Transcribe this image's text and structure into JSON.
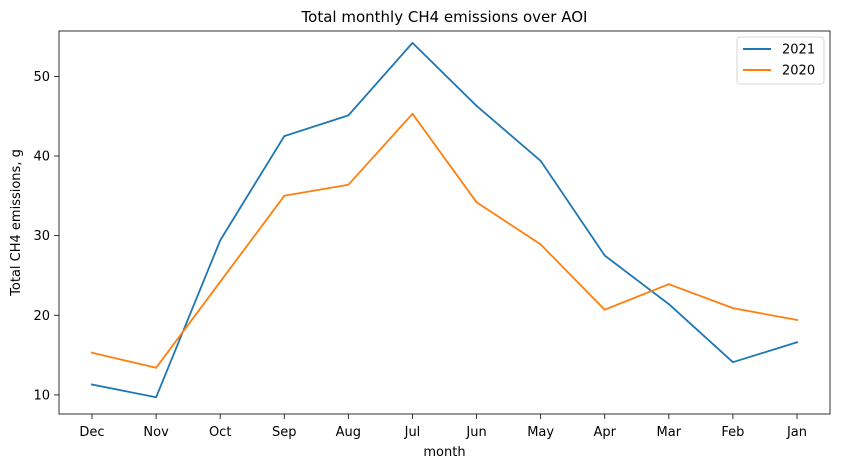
{
  "chart_data": {
    "type": "line",
    "title": "Total monthly CH4 emissions over AOI",
    "xlabel": "month",
    "ylabel": "Total CH4 emissions, g",
    "categories": [
      "Dec",
      "Nov",
      "Oct",
      "Sep",
      "Aug",
      "Jul",
      "Jun",
      "May",
      "Apr",
      "Mar",
      "Feb",
      "Jan"
    ],
    "ylim": [
      7.6,
      55.7
    ],
    "yticks": [
      10,
      20,
      30,
      40,
      50
    ],
    "grid": false,
    "legend_position": "top-right",
    "series": [
      {
        "name": "2021",
        "color": "#1f77b4",
        "values": [
          11.3,
          9.7,
          29.4,
          42.5,
          45.1,
          54.2,
          46.3,
          39.4,
          27.5,
          21.4,
          14.1,
          16.6
        ]
      },
      {
        "name": "2020",
        "color": "#ff7f0e",
        "values": [
          15.3,
          13.4,
          24.2,
          35.0,
          36.4,
          45.3,
          34.2,
          28.9,
          20.7,
          23.9,
          20.9,
          19.4
        ]
      }
    ]
  }
}
